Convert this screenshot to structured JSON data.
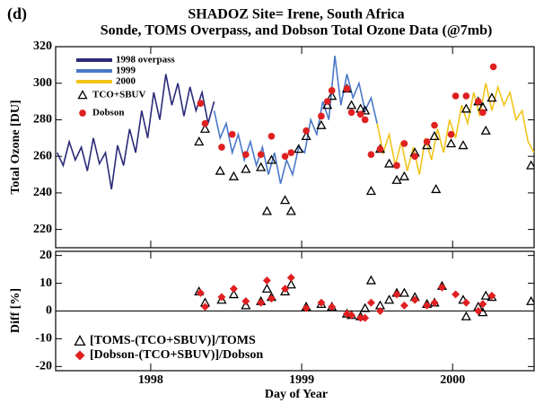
{
  "panel_label": "(d)",
  "chart_data": [
    {
      "type": "line",
      "title": "SHADOZ Site= Irene, South Africa",
      "subtitle": "Sonde, TOMS Overpass, and Dobson Total Ozone Data (@7mb)",
      "y_label": "Total Ozone [DU]",
      "xlim": [
        1997.37,
        2000.54
      ],
      "xticks": [
        1998,
        1999,
        2000
      ],
      "ylim": [
        210,
        320
      ],
      "yticks": [
        220,
        240,
        260,
        280,
        300,
        320
      ],
      "legend": "upper left",
      "series": [
        {
          "name": "1998 overpass",
          "color": "#2b2a78",
          "x": [
            1997.38,
            1997.42,
            1997.46,
            1997.5,
            1997.54,
            1997.58,
            1997.62,
            1997.66,
            1997.7,
            1997.74,
            1997.78,
            1997.82,
            1997.86,
            1997.9,
            1997.94,
            1997.98,
            1998.02,
            1998.06,
            1998.1,
            1998.14,
            1998.18,
            1998.22,
            1998.26,
            1998.3,
            1998.34,
            1998.38,
            1998.42
          ],
          "values": [
            262,
            255,
            268,
            258,
            265,
            252,
            270,
            256,
            262,
            242,
            266,
            255,
            275,
            262,
            285,
            270,
            295,
            280,
            305,
            288,
            300,
            282,
            298,
            285,
            295,
            278,
            290
          ]
        },
        {
          "name": "1999",
          "color": "#4a78c8",
          "x": [
            1998.42,
            1998.46,
            1998.5,
            1998.54,
            1998.58,
            1998.62,
            1998.66,
            1998.7,
            1998.74,
            1998.78,
            1998.82,
            1998.86,
            1998.9,
            1998.94,
            1998.98,
            1999.02,
            1999.06,
            1999.1,
            1999.14,
            1999.18,
            1999.22,
            1999.26,
            1999.3,
            1999.34,
            1999.38,
            1999.42,
            1999.46,
            1999.5
          ],
          "values": [
            285,
            270,
            278,
            262,
            272,
            258,
            268,
            255,
            265,
            250,
            262,
            245,
            258,
            250,
            265,
            262,
            280,
            272,
            290,
            280,
            315,
            288,
            305,
            292,
            300,
            285,
            292,
            278
          ]
        },
        {
          "name": "2000",
          "color": "#f0c419",
          "x": [
            1999.5,
            1999.54,
            1999.58,
            1999.62,
            1999.66,
            1999.7,
            1999.74,
            1999.78,
            1999.82,
            1999.86,
            1999.9,
            1999.94,
            1999.98,
            2000.02,
            2000.06,
            2000.1,
            2000.14,
            2000.18,
            2000.22,
            2000.26,
            2000.3,
            2000.34,
            2000.38,
            2000.42,
            2000.46,
            2000.5,
            2000.54
          ],
          "values": [
            278,
            262,
            272,
            255,
            268,
            252,
            265,
            250,
            270,
            258,
            275,
            262,
            280,
            270,
            288,
            278,
            295,
            282,
            300,
            285,
            298,
            288,
            295,
            280,
            285,
            268,
            262
          ]
        },
        {
          "name": "TCO+SBUV",
          "color": "#000000",
          "marker": "triangle",
          "x": [
            1998.32,
            1998.36,
            1998.46,
            1998.55,
            1998.63,
            1998.73,
            1998.77,
            1998.8,
            1998.89,
            1998.93,
            1998.98,
            1999.03,
            1999.13,
            1999.17,
            1999.2,
            1999.3,
            1999.33,
            1999.39,
            1999.42,
            1999.46,
            1999.52,
            1999.58,
            1999.63,
            1999.68,
            1999.75,
            1999.83,
            1999.88,
            1999.89,
            1999.99,
            2000.07,
            2000.09,
            2000.17,
            2000.2,
            2000.22,
            2000.26,
            2000.52
          ],
          "values": [
            268,
            275,
            252,
            249,
            253,
            254,
            230,
            258,
            236,
            230,
            264,
            271,
            277,
            288,
            293,
            297,
            288,
            286,
            285,
            241,
            264,
            256,
            247,
            249,
            262,
            266,
            271,
            242,
            267,
            266,
            286,
            290,
            287,
            274,
            292,
            255
          ]
        },
        {
          "name": "Dobson",
          "color": "#e02020",
          "marker": "circle",
          "x": [
            1998.33,
            1998.36,
            1998.47,
            1998.54,
            1998.63,
            1998.73,
            1998.8,
            1998.89,
            1998.93,
            1999.03,
            1999.13,
            1999.17,
            1999.2,
            1999.3,
            1999.33,
            1999.39,
            1999.42,
            1999.46,
            1999.52,
            1999.63,
            1999.68,
            1999.75,
            1999.83,
            1999.88,
            1999.99,
            2000.02,
            2000.09,
            2000.17,
            2000.2,
            2000.27
          ],
          "values": [
            289,
            278,
            265,
            272,
            261,
            261,
            271,
            260,
            262,
            274,
            282,
            290,
            296,
            297,
            284,
            283,
            280,
            261,
            264,
            255,
            267,
            260,
            268,
            277,
            272,
            293,
            293,
            290,
            284,
            309
          ]
        }
      ]
    },
    {
      "type": "scatter",
      "y_label": "Diff [%]",
      "x_label": "Day of Year",
      "xlim": [
        1997.37,
        2000.54
      ],
      "xticks": [
        1998,
        1999,
        2000
      ],
      "ylim": [
        -21.5,
        21.5
      ],
      "yticks": [
        -20,
        -10,
        0,
        10,
        20
      ],
      "zero_line": true,
      "legend": "lower left",
      "series": [
        {
          "name": "[TOMS-(TCO+SBUV)]/TOMS",
          "color": "#000000",
          "marker": "triangle",
          "x": [
            1998.32,
            1998.36,
            1998.47,
            1998.55,
            1998.63,
            1998.73,
            1998.77,
            1998.8,
            1998.89,
            1998.93,
            1999.03,
            1999.13,
            1999.2,
            1999.3,
            1999.33,
            1999.39,
            1999.42,
            1999.46,
            1999.52,
            1999.58,
            1999.63,
            1999.68,
            1999.75,
            1999.83,
            1999.88,
            1999.93,
            2000.07,
            2000.09,
            2000.17,
            2000.2,
            2000.22,
            2000.26,
            2000.52
          ],
          "values": [
            7,
            3,
            4,
            6,
            2,
            3.5,
            8,
            5,
            7,
            9.5,
            1.5,
            2.5,
            1.5,
            -1,
            -1.5,
            -2,
            1,
            11,
            2,
            4,
            6.5,
            6.5,
            5,
            2.5,
            3,
            9,
            4,
            -2,
            1.5,
            -0.5,
            5.5,
            5,
            3.5
          ]
        },
        {
          "name": "[Dobson-(TCO+SBUV)]/Dobson",
          "color": "#e02020",
          "marker": "diamond",
          "x": [
            1998.33,
            1998.36,
            1998.47,
            1998.55,
            1998.63,
            1998.73,
            1998.77,
            1998.8,
            1998.89,
            1998.93,
            1999.03,
            1999.13,
            1999.2,
            1999.3,
            1999.33,
            1999.39,
            1999.42,
            1999.46,
            1999.52,
            1999.63,
            1999.68,
            1999.75,
            1999.83,
            1999.88,
            1999.93,
            2000.02,
            2000.09,
            2000.17,
            2000.2,
            2000.26
          ],
          "values": [
            6.5,
            1.5,
            5,
            8,
            3.5,
            3,
            11,
            4.5,
            8,
            12,
            1,
            3,
            1.5,
            -1,
            -1.5,
            -2.5,
            -2.5,
            3,
            0,
            6,
            2,
            4,
            2,
            3,
            8.5,
            6,
            3,
            0,
            2.5,
            5.5
          ]
        }
      ]
    }
  ]
}
